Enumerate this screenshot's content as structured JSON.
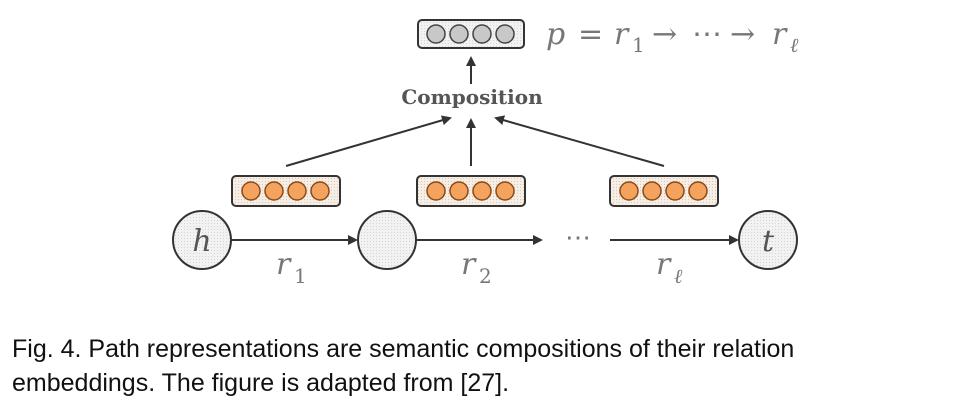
{
  "diagram": {
    "top_formula": {
      "p": "p",
      "eq": "=",
      "r1": "r",
      "r1_sub": "1",
      "arrow1": "→",
      "dots": "⋯",
      "arrow2": "→",
      "rl": "r",
      "rl_sub": "ℓ"
    },
    "composition_label": "Composition",
    "nodes": {
      "head": "h",
      "tail": "t"
    },
    "edges": {
      "r1": {
        "base": "r",
        "sub": "1"
      },
      "r2": {
        "base": "r",
        "sub": "2"
      },
      "rl": {
        "base": "r",
        "sub": "ℓ"
      },
      "ellipsis": "⋯"
    },
    "colors": {
      "embedding_fill": "#f4a35f",
      "embedding_stroke": "#a0521a",
      "box_fill": "#f6ede4",
      "output_fill": "#c8c8c8",
      "node_fill": "#eeeeee",
      "line": "#333333",
      "label_gray": "#777777"
    }
  },
  "caption": {
    "line1": "Fig. 4. Path representations are semantic compositions of their relation",
    "line2": "embeddings. The figure is adapted from [27]."
  }
}
